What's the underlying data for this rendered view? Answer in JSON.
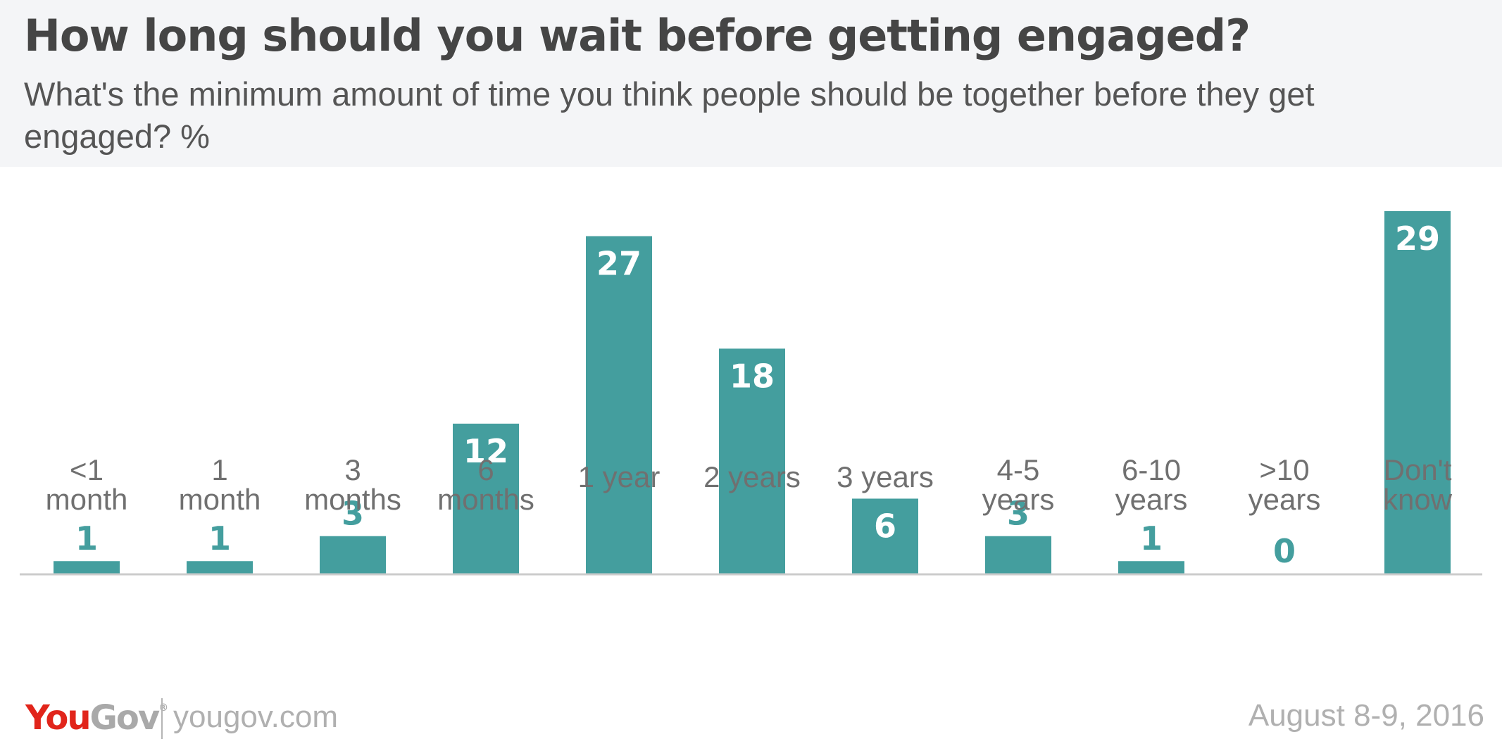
{
  "header": {
    "title": "How long should you wait before getting engaged?",
    "subtitle": "What's the minimum amount of time you think people should be together before they get engaged? %"
  },
  "footer": {
    "brand_you": "You",
    "brand_gov": "Gov",
    "brand_mark": "®",
    "site": "yougov.com",
    "date": "August 8-9, 2016"
  },
  "colors": {
    "bar": "#449e9e",
    "label_inside": "#ffffff",
    "axis": "#cccccc",
    "category_text": "#707070",
    "header_bg": "#f4f5f7"
  },
  "chart_data": {
    "type": "bar",
    "categories": [
      [
        "<1",
        "month"
      ],
      [
        "1",
        "month"
      ],
      [
        "3",
        "months"
      ],
      [
        "6",
        "months"
      ],
      [
        "1 year"
      ],
      [
        "2 years"
      ],
      [
        "3 years"
      ],
      [
        "4-5",
        "years"
      ],
      [
        "6-10",
        "years"
      ],
      [
        ">10",
        "years"
      ],
      [
        "Don't",
        "know"
      ]
    ],
    "values": [
      1,
      1,
      3,
      12,
      27,
      18,
      6,
      3,
      1,
      0,
      29
    ],
    "title": "How long should you wait before getting engaged?",
    "ylim": [
      0,
      29
    ],
    "grid": false,
    "legend": "none"
  }
}
